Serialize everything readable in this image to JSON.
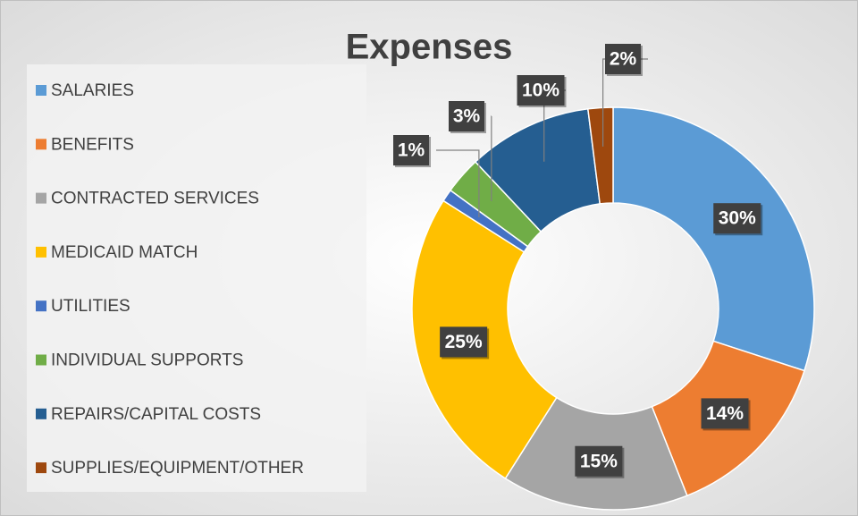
{
  "chart_data": {
    "type": "donut",
    "title": "Expenses",
    "categories": [
      "SALARIES",
      "BENEFITS",
      "CONTRACTED SERVICES",
      "MEDICAID MATCH",
      "UTILITIES",
      "INDIVIDUAL SUPPORTS",
      "REPAIRS/CAPITAL COSTS",
      "SUPPLIES/EQUIPMENT/OTHER"
    ],
    "values": [
      30,
      14,
      15,
      25,
      1,
      3,
      10,
      2
    ],
    "value_labels": [
      "30%",
      "14%",
      "15%",
      "25%",
      "1%",
      "3%",
      "10%",
      "2%"
    ],
    "colors": [
      "#5b9bd5",
      "#ed7d31",
      "#a5a5a5",
      "#ffc000",
      "#4472c4",
      "#70ad47",
      "#255e91",
      "#9e480e"
    ],
    "legend": "left"
  }
}
